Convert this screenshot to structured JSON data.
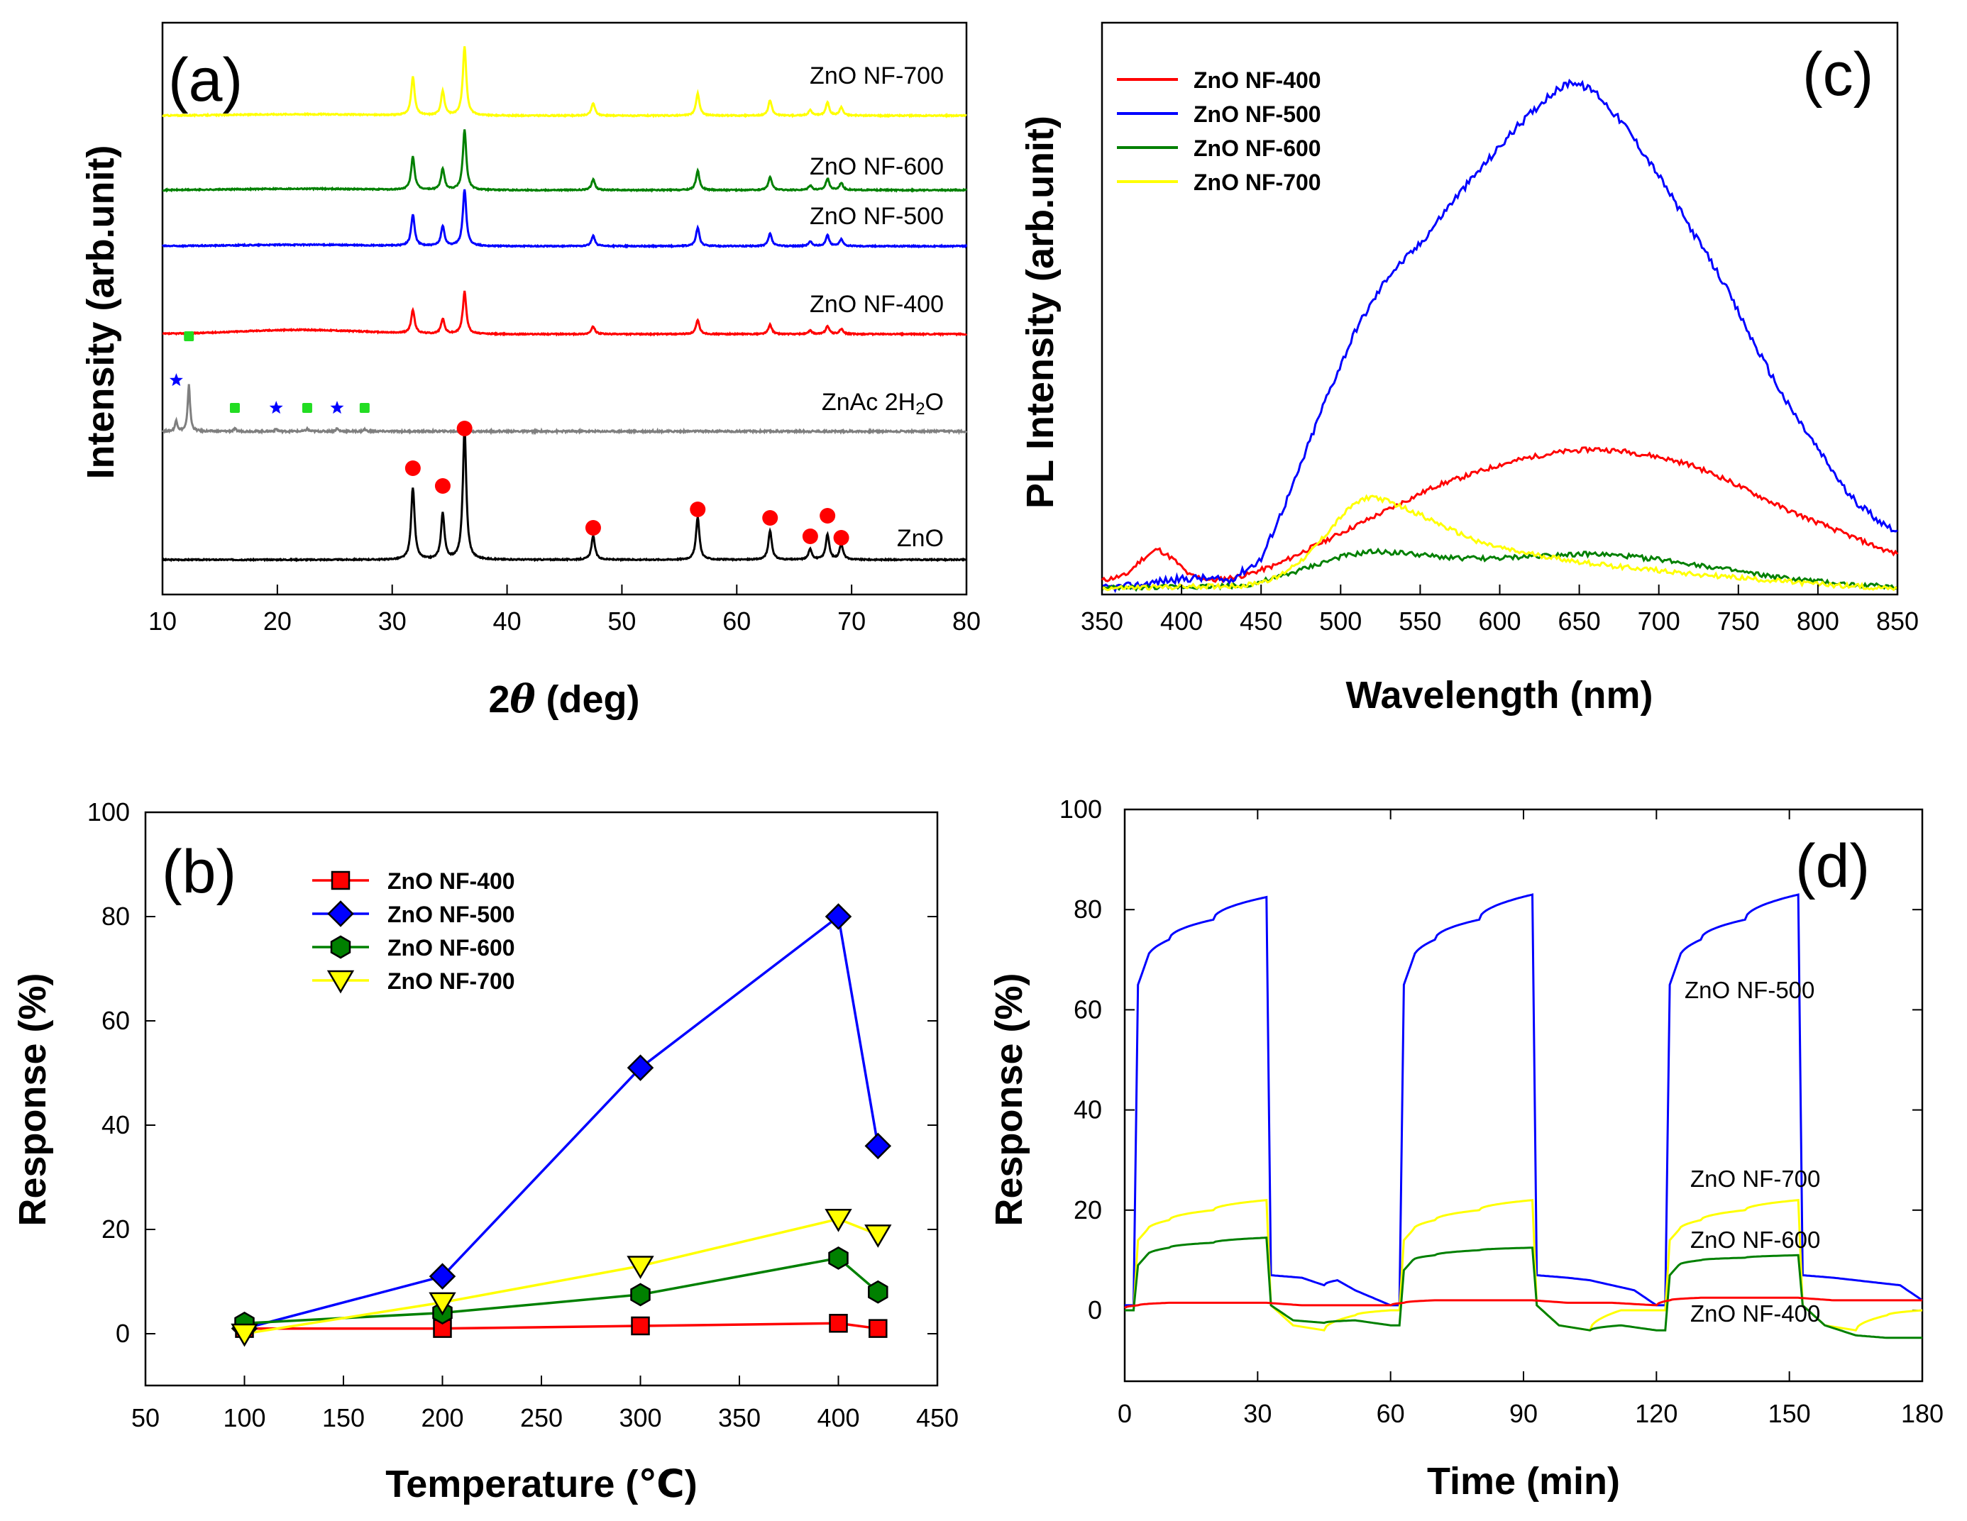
{
  "figure": {
    "panels": [
      "(a)",
      "(b)",
      "(c)",
      "(d)"
    ]
  },
  "chart_data": [
    {
      "id": "a",
      "type": "line",
      "panel_label": "(a)",
      "xlabel_prefix": "2",
      "xlabel_theta": "θ",
      "xlabel_suffix": " (deg)",
      "ylabel": "Intensity (arb.unit)",
      "xlim": [
        10,
        80
      ],
      "xticks": [
        10,
        20,
        30,
        40,
        50,
        60,
        70,
        80
      ],
      "zno_peaks": [
        31.8,
        34.4,
        36.3,
        47.5,
        56.6,
        62.9,
        66.4,
        67.9,
        69.1
      ],
      "zno_peak_heights": [
        0.55,
        0.35,
        1.0,
        0.18,
        0.32,
        0.22,
        0.08,
        0.19,
        0.12
      ],
      "series": [
        {
          "name": "ZnO",
          "label": "ZnO",
          "color": "#000000",
          "offset": 0,
          "scale": 1.0,
          "hump": 0
        },
        {
          "name": "ZnAc 2H2O",
          "label_main": "ZnAc 2H",
          "label_sub": "2",
          "label_end": "O",
          "color": "#7f7f7f",
          "offset": 1,
          "scale": 0,
          "hump": 0
        },
        {
          "name": "ZnO NF-400",
          "label": "ZnO NF-400",
          "color": "#ff0000",
          "offset": 2,
          "scale": 0.35,
          "hump": 0.06
        },
        {
          "name": "ZnO NF-500",
          "label": "ZnO NF-500",
          "color": "#0000ff",
          "offset": 3,
          "scale": 0.45,
          "hump": 0.02
        },
        {
          "name": "ZnO NF-600",
          "label": "ZnO NF-600",
          "color": "#008000",
          "offset": 4,
          "scale": 0.5,
          "hump": 0.02
        },
        {
          "name": "ZnO NF-700",
          "label": "ZnO NF-700",
          "color": "#ffff00",
          "offset": 5,
          "scale": 0.6,
          "hump": 0.02
        }
      ],
      "znac_peaks": [
        11.2,
        12.3,
        16.3,
        19.9,
        22.6,
        25.2,
        27.6
      ],
      "znac_heights": [
        0.22,
        0.95,
        0.05,
        0.05,
        0.05,
        0.06,
        0.04
      ],
      "markers_zno_x": [
        31.8,
        34.4,
        36.3,
        47.5,
        56.6,
        62.9,
        66.4,
        67.9,
        69.1
      ],
      "markers_star_x": [
        11.2,
        19.9,
        25.2
      ],
      "markers_square_x": [
        12.3,
        16.3,
        22.6,
        27.6
      ]
    },
    {
      "id": "b",
      "type": "line",
      "panel_label": "(b)",
      "xlabel": "Temperature (℃)",
      "ylabel": "Response (%)",
      "xlim": [
        50,
        450
      ],
      "ylim": [
        -10,
        100
      ],
      "xticks": [
        50,
        100,
        150,
        200,
        250,
        300,
        350,
        400,
        450
      ],
      "yticks": [
        0,
        20,
        40,
        60,
        80,
        100
      ],
      "x": [
        100,
        200,
        300,
        400,
        420
      ],
      "series": [
        {
          "name": "ZnO NF-400",
          "color": "#ff0000",
          "marker": "square",
          "values": [
            1,
            1,
            1.5,
            2,
            1
          ]
        },
        {
          "name": "ZnO NF-500",
          "color": "#0000ff",
          "marker": "diamond",
          "values": [
            1,
            11,
            51,
            80,
            36
          ]
        },
        {
          "name": "ZnO NF-600",
          "color": "#008000",
          "marker": "hexagon",
          "values": [
            2,
            4,
            7.5,
            14.5,
            8
          ]
        },
        {
          "name": "ZnO NF-700",
          "color": "#ffff00",
          "marker": "triangle-down",
          "values": [
            0,
            6,
            13,
            22,
            19
          ]
        }
      ]
    },
    {
      "id": "c",
      "type": "line",
      "panel_label": "(c)",
      "xlabel": "Wavelength (nm)",
      "ylabel": "PL Intensity (arb.unit)",
      "xlim": [
        350,
        850
      ],
      "xticks": [
        350,
        400,
        450,
        500,
        550,
        600,
        650,
        700,
        750,
        800,
        850
      ],
      "series": [
        {
          "name": "ZnO NF-400",
          "color": "#ff0000",
          "x": [
            350,
            365,
            375,
            385,
            395,
            405,
            420,
            440,
            460,
            480,
            500,
            520,
            540,
            560,
            580,
            600,
            620,
            640,
            660,
            680,
            700,
            720,
            740,
            760,
            780,
            800,
            820,
            840,
            850
          ],
          "y": [
            2,
            3,
            6,
            8,
            6,
            3,
            2,
            3,
            5,
            8,
            11,
            14,
            17,
            20,
            22,
            24,
            25.5,
            26.5,
            27,
            26.5,
            25.5,
            24,
            21.5,
            18.5,
            15.5,
            13,
            10.5,
            8,
            7
          ]
        },
        {
          "name": "ZnO NF-500",
          "color": "#0000ff",
          "x": [
            350,
            370,
            390,
            410,
            430,
            450,
            470,
            490,
            510,
            530,
            550,
            570,
            590,
            610,
            630,
            645,
            660,
            680,
            700,
            720,
            740,
            760,
            780,
            800,
            820,
            840,
            850
          ],
          "y": [
            0.5,
            1,
            2,
            2.5,
            2,
            6,
            20,
            36,
            50,
            60,
            66,
            74,
            81,
            88,
            94,
            97,
            95,
            88,
            79,
            69,
            59,
            47,
            36,
            27,
            18,
            13,
            11.5
          ]
        },
        {
          "name": "ZnO NF-600",
          "color": "#008000",
          "x": [
            350,
            400,
            440,
            460,
            480,
            500,
            520,
            540,
            560,
            580,
            600,
            620,
            640,
            660,
            680,
            700,
            720,
            740,
            760,
            780,
            800,
            820,
            850
          ],
          "y": [
            0.5,
            0.8,
            1,
            2.5,
            4.5,
            6.5,
            7.5,
            7.2,
            6.5,
            6.2,
            6.2,
            6.6,
            7,
            7,
            6.6,
            6,
            5.2,
            4.2,
            3.2,
            2.4,
            1.8,
            1.2,
            0.8
          ]
        },
        {
          "name": "ZnO NF-700",
          "color": "#ffff00",
          "x": [
            350,
            400,
            440,
            460,
            480,
            500,
            510,
            520,
            530,
            550,
            570,
            590,
            610,
            630,
            650,
            670,
            690,
            710,
            730,
            750,
            770,
            790,
            810,
            830,
            850
          ],
          "y": [
            0.5,
            0.8,
            1,
            2.5,
            7,
            14,
            17,
            18,
            17,
            14.5,
            11.5,
            9,
            7.5,
            6.5,
            5.5,
            4.8,
            4.2,
            3.6,
            3,
            2.5,
            2,
            1.5,
            1.1,
            0.8,
            0.5
          ]
        }
      ]
    },
    {
      "id": "d",
      "type": "line",
      "panel_label": "(d)",
      "xlabel": "Time (min)",
      "ylabel": "Response (%)",
      "xlim": [
        0,
        180
      ],
      "ylim": [
        -15,
        100
      ],
      "xticks": [
        0,
        30,
        60,
        90,
        120,
        150,
        180
      ],
      "yticks": [
        0,
        20,
        40,
        60,
        80,
        100
      ],
      "series": [
        {
          "name": "ZnO NF-500",
          "label": "ZnO NF-500",
          "color": "#0000ff",
          "x": [
            0,
            2,
            3,
            5,
            10,
            20,
            32,
            33,
            40,
            45,
            48,
            52,
            60,
            62,
            63,
            65,
            70,
            80,
            92,
            93,
            100,
            105,
            110,
            115,
            120,
            122,
            123,
            125,
            130,
            140,
            152,
            153,
            160,
            165,
            170,
            175,
            180
          ],
          "y": [
            1,
            1,
            65,
            70,
            74,
            78,
            82.5,
            7,
            6.5,
            5,
            6,
            4,
            1,
            1,
            65,
            70,
            74,
            78,
            83,
            7,
            6.5,
            6,
            5,
            4,
            1,
            1,
            65,
            70,
            74,
            78,
            83,
            7,
            6.5,
            6,
            5.5,
            5,
            2
          ]
        },
        {
          "name": "ZnO NF-700",
          "label": "ZnO NF-700",
          "color": "#ffff00",
          "x": [
            0,
            2,
            3,
            5,
            10,
            20,
            32,
            33,
            38,
            45,
            52,
            60,
            62,
            63,
            65,
            70,
            80,
            92,
            93,
            98,
            105,
            112,
            120,
            122,
            123,
            125,
            130,
            140,
            152,
            153,
            158,
            165,
            172,
            180
          ],
          "y": [
            0,
            0,
            14,
            16,
            18,
            20,
            22,
            1,
            -3,
            -4,
            -1,
            0,
            0,
            14,
            16,
            18,
            20,
            22,
            1,
            -3,
            -4,
            0,
            0,
            0,
            14,
            16,
            18,
            20,
            22,
            1,
            -3,
            -4,
            -1,
            0
          ]
        },
        {
          "name": "ZnO NF-600",
          "label": "ZnO NF-600",
          "color": "#008000",
          "x": [
            0,
            2,
            3,
            5,
            10,
            20,
            32,
            33,
            38,
            45,
            52,
            60,
            62,
            63,
            65,
            70,
            80,
            92,
            93,
            98,
            105,
            112,
            120,
            122,
            123,
            125,
            130,
            140,
            152,
            153,
            158,
            165,
            172,
            180
          ],
          "y": [
            0,
            0,
            9,
            11,
            12.5,
            13.5,
            14.5,
            1,
            -2,
            -2.5,
            -2,
            -3,
            -3,
            8,
            10,
            11,
            12,
            12.5,
            1,
            -3,
            -4,
            -3,
            -4,
            -4,
            7,
            9,
            10,
            10.5,
            11,
            1,
            -3,
            -5,
            -5.5,
            -5.5
          ]
        },
        {
          "name": "ZnO NF-400",
          "label": "ZnO NF-400",
          "color": "#ff0000",
          "x": [
            0,
            3,
            10,
            20,
            32,
            40,
            50,
            60,
            63,
            70,
            80,
            92,
            100,
            110,
            120,
            123,
            130,
            140,
            152,
            160,
            170,
            180
          ],
          "y": [
            0.5,
            1,
            1.5,
            1.5,
            1.5,
            1,
            1,
            1,
            1.5,
            2,
            2,
            2,
            1.5,
            1.5,
            1,
            2,
            2.5,
            2.5,
            2.5,
            2,
            2,
            2
          ]
        }
      ]
    }
  ]
}
